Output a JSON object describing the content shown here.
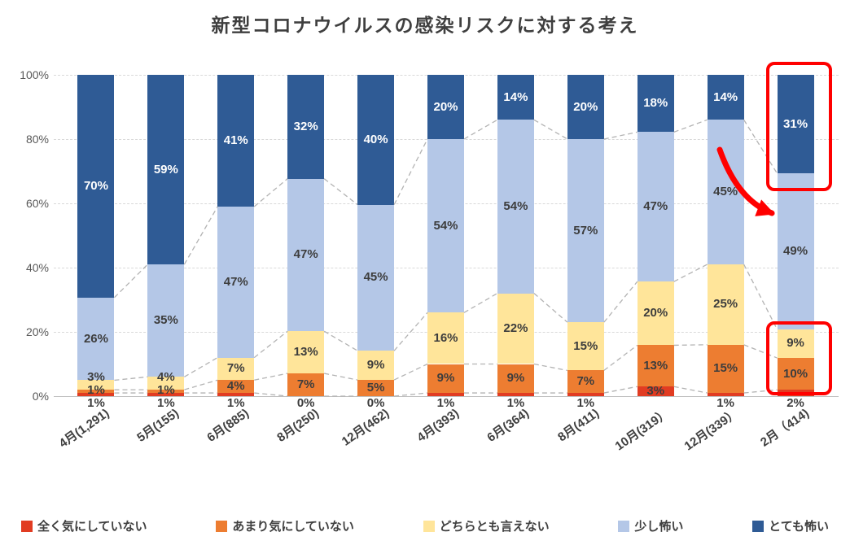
{
  "y_ticks": [
    "0%",
    "20%",
    "40%",
    "60%",
    "80%",
    "100%"
  ],
  "chart_data": {
    "type": "bar",
    "stacked": true,
    "percent_stacked": true,
    "title": "新型コロナウイルスの感染リスクに対する考え",
    "categories": [
      "4月(1,291)",
      "5月(155)",
      "6月(885)",
      "8月(250)",
      "12月(462)",
      "4月(393)",
      "6月(364)",
      "8月(411)",
      "10月(319）",
      "12月(339）",
      "2月（414)"
    ],
    "series": [
      {
        "name": "全く気にしていない",
        "color": "#e13c22",
        "values": [
          1,
          1,
          1,
          0,
          0,
          1,
          1,
          1,
          3,
          1,
          2
        ]
      },
      {
        "name": "あまり気にしていない",
        "color": "#ed7d31",
        "values": [
          1,
          1,
          4,
          7,
          5,
          9,
          9,
          7,
          13,
          15,
          10
        ]
      },
      {
        "name": "どちらとも言えない",
        "color": "#ffe59a",
        "values": [
          3,
          4,
          7,
          13,
          9,
          16,
          22,
          15,
          20,
          25,
          9
        ]
      },
      {
        "name": "少し怖い",
        "color": "#b4c7e7",
        "values": [
          26,
          35,
          47,
          47,
          45,
          54,
          54,
          57,
          47,
          45,
          49
        ]
      },
      {
        "name": "とても怖い",
        "color": "#2f5b95",
        "values": [
          70,
          59,
          41,
          32,
          40,
          20,
          14,
          20,
          18,
          14,
          31
        ]
      }
    ],
    "ylim": [
      0,
      100
    ],
    "gridlines": true,
    "legend_position": "bottom",
    "connector_lines": "dashed",
    "label_unit": "%"
  },
  "annotations": {
    "highlight_color": "#ff0000",
    "boxes": [
      "2月（414) とても怖い 31%",
      "2月（414) 下位セグメント 9% 10% 2%"
    ],
    "arrow": "とても怖いの減少を指す赤い矢印"
  }
}
